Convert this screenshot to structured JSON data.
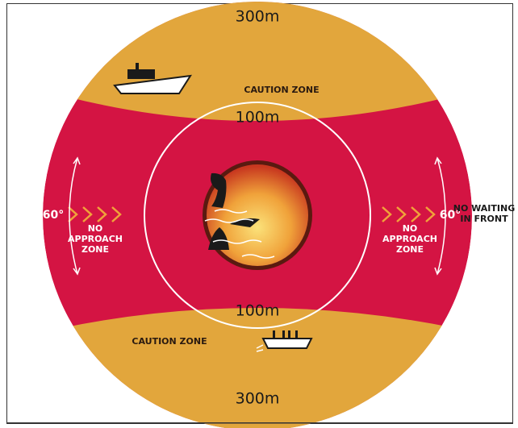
{
  "top_zone": {
    "distance": "300m",
    "label": "CAUTION ZONE",
    "inner_distance": "100m"
  },
  "bottom_zone": {
    "inner_distance": "100m",
    "label": "CAUTION ZONE",
    "distance": "300m"
  },
  "left_zone": {
    "angle": "60°",
    "label": [
      "NO",
      "APPROACH",
      "ZONE"
    ]
  },
  "right_zone": {
    "angle": "60°",
    "label": [
      "NO",
      "APPROACH",
      "ZONE"
    ]
  },
  "front_note": [
    "NO WAITING",
    "IN FRONT"
  ]
}
